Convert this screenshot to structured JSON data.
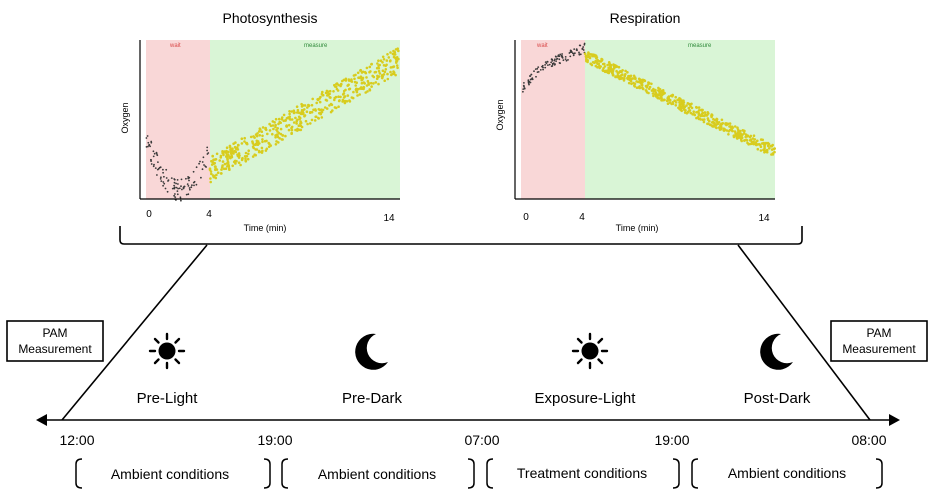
{
  "plots": [
    {
      "title": "Photosynthesis",
      "phases": [
        "wait",
        "measure"
      ],
      "x_label": "Time (min)",
      "y_label": "Oxygen",
      "x_ticks": [
        "0",
        "4",
        "14"
      ]
    },
    {
      "title": "Respiration",
      "phases": [
        "wait",
        "measure"
      ],
      "x_label": "Time (min)",
      "y_label": "Oxygen",
      "x_ticks": [
        "0",
        "4",
        "14"
      ]
    }
  ],
  "pam_boxes": [
    {
      "line1": "PAM",
      "line2": "Measurement"
    },
    {
      "line1": "PAM",
      "line2": "Measurement"
    }
  ],
  "periods": [
    {
      "label": "Pre-Light",
      "icon": "sun-icon"
    },
    {
      "label": "Pre-Dark",
      "icon": "moon-icon"
    },
    {
      "label": "Exposure-Light",
      "icon": "sun-icon"
    },
    {
      "label": "Post-Dark",
      "icon": "moon-icon"
    }
  ],
  "times": [
    "12:00",
    "19:00",
    "07:00",
    "19:00",
    "08:00"
  ],
  "conditions": [
    "Ambient conditions",
    "Ambient conditions",
    "Treatment conditions",
    "Ambient conditions"
  ],
  "colors": {
    "wait_bg": "#f9d7d7",
    "measure_bg": "#d9f5d6",
    "wait_dots": "#3a3a3a",
    "measure_dots": "#d8cc1e",
    "wait_text": "#d94a4a",
    "measure_text": "#2f8a3a"
  }
}
